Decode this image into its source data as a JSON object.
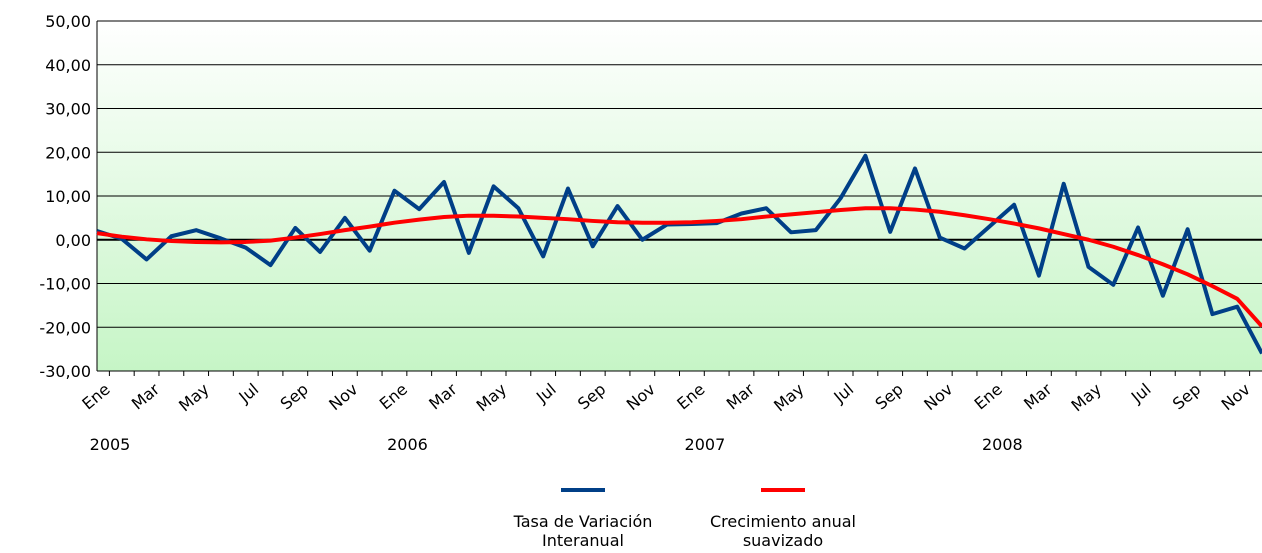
{
  "chart_data": {
    "type": "line",
    "categories": [
      "Ene",
      null,
      "Mar",
      null,
      "May",
      null,
      "Jul",
      null,
      "Sep",
      null,
      "Nov",
      null,
      "Ene",
      null,
      "Mar",
      null,
      "May",
      null,
      "Jul",
      null,
      "Sep",
      null,
      "Nov",
      null,
      "Ene",
      null,
      "Mar",
      null,
      "May",
      null,
      "Jul",
      null,
      "Sep",
      null,
      "Nov",
      null,
      "Ene",
      null,
      "Mar",
      null,
      "May",
      null,
      "Jul",
      null,
      "Sep",
      null,
      "Nov",
      null
    ],
    "years": [
      "2005",
      "2006",
      "2007",
      "2008"
    ],
    "series": [
      {
        "name": "Tasa de Variación Interanual",
        "color": "#003f87",
        "values": [
          2,
          0.2,
          -4.5,
          0.8,
          2.2,
          0.3,
          -1.8,
          -5.8,
          2.7,
          -2.8,
          5,
          -2.5,
          11.2,
          7,
          13.2,
          -3,
          12.2,
          7.2,
          -3.8,
          11.7,
          -1.5,
          7.7,
          0,
          3.5,
          3.6,
          3.8,
          6,
          7.2,
          1.7,
          2.2,
          9.5,
          19.2,
          1.8,
          16.3,
          0.5,
          -2,
          3,
          8,
          -8.2,
          12.8,
          -6.2,
          -10.3,
          2.8,
          -12.8,
          2.4,
          -17,
          -15.3,
          -26
        ]
      },
      {
        "name": "Crecimiento anual suavizado",
        "color": "#ff0000",
        "values": [
          1.5,
          0.7,
          0.1,
          -0.3,
          -0.5,
          -0.6,
          -0.5,
          -0.2,
          0.5,
          1.3,
          2.2,
          3,
          3.9,
          4.6,
          5.2,
          5.5,
          5.5,
          5.3,
          5,
          4.7,
          4.3,
          4,
          3.9,
          3.9,
          4,
          4.3,
          4.7,
          5.3,
          5.8,
          6.3,
          6.8,
          7.2,
          7.2,
          6.9,
          6.4,
          5.6,
          4.7,
          3.7,
          2.6,
          1.3,
          0,
          -1.6,
          -3.5,
          -5.6,
          -7.9,
          -10.6,
          -13.5,
          -19.8
        ]
      }
    ],
    "ylim": [
      -30,
      50
    ],
    "yticks": [
      {
        "value": -30,
        "label": "-30,00"
      },
      {
        "value": -20,
        "label": "-20,00"
      },
      {
        "value": -10,
        "label": "-10,00"
      },
      {
        "value": 0,
        "label": "0,00"
      },
      {
        "value": 10,
        "label": "10,00"
      },
      {
        "value": 20,
        "label": "20,00"
      },
      {
        "value": 30,
        "label": "30,00"
      },
      {
        "value": 40,
        "label": "40,00"
      },
      {
        "value": 50,
        "label": "50,00"
      }
    ],
    "grid": true,
    "legend": "bottom"
  }
}
